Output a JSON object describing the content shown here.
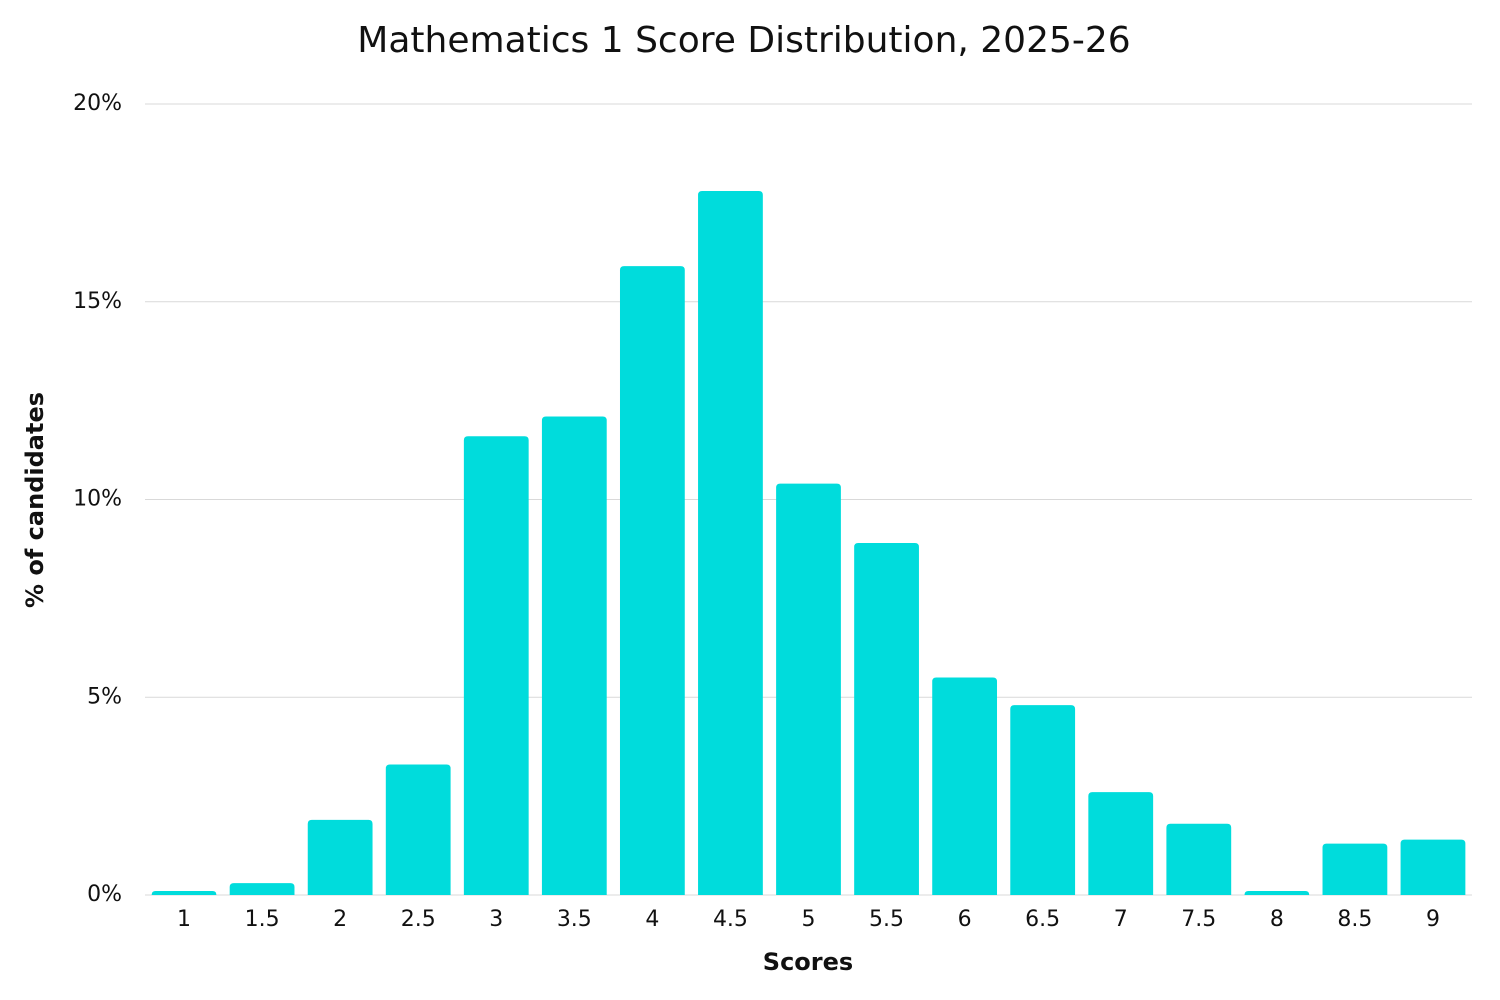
{
  "chart_data": {
    "type": "bar",
    "title": "Mathematics 1 Score Distribution, 2025-26",
    "x_label": "Scores",
    "y_label": "% of candidates",
    "categories": [
      "1",
      "1.5",
      "2",
      "2.5",
      "3",
      "3.5",
      "4",
      "4.5",
      "5",
      "5.5",
      "6",
      "6.5",
      "7",
      "7.5",
      "8",
      "8.5",
      "9"
    ],
    "values": [
      0.1,
      0.3,
      1.9,
      3.3,
      11.6,
      12.1,
      15.9,
      17.8,
      10.4,
      8.9,
      5.5,
      4.8,
      2.6,
      1.8,
      0.1,
      1.3,
      1.4
    ],
    "color": "#00dcdc",
    "ylim": [
      0,
      20
    ],
    "yticks": [
      {
        "value": 0,
        "label": "0%"
      },
      {
        "value": 5,
        "label": "5%"
      },
      {
        "value": 10,
        "label": "10%"
      },
      {
        "value": 15,
        "label": "15%"
      },
      {
        "value": 20,
        "label": "20%"
      }
    ],
    "grid": true
  }
}
